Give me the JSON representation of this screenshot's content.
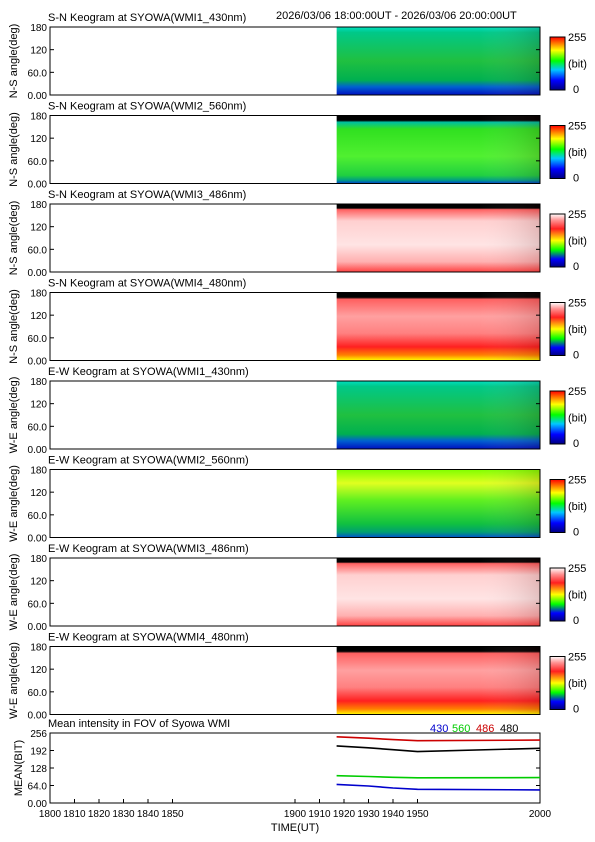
{
  "header": {
    "time_range": "2026/03/06 18:00:00UT - 2026/03/06 20:00:00UT"
  },
  "colorbar": {
    "max_label": "255",
    "unit_label": "(bit)",
    "min_label": "0"
  },
  "keogram_panels": [
    {
      "title": "S-N Keogram at SYOWA(WMI1_430nm)",
      "ylabel": "N-S angle(deg)",
      "palette": "bgr",
      "scheme": "green_mid"
    },
    {
      "title": "S-N Keogram at SYOWA(WMI2_560nm)",
      "ylabel": "N-S angle(deg)",
      "palette": "bgr",
      "scheme": "green_bright"
    },
    {
      "title": "S-N Keogram at SYOWA(WMI3_486nm)",
      "ylabel": "N-S angle(deg)",
      "palette": "wr",
      "scheme": "white_red_top"
    },
    {
      "title": "S-N Keogram at SYOWA(WMI4_480nm)",
      "ylabel": "N-S angle(deg)",
      "palette": "wr",
      "scheme": "red_yellow_bottom"
    },
    {
      "title": "E-W Keogram at SYOWA(WMI1_430nm)",
      "ylabel": "W-E angle(deg)",
      "palette": "bgr",
      "scheme": "green_mid"
    },
    {
      "title": "E-W Keogram at SYOWA(WMI2_560nm)",
      "ylabel": "W-E angle(deg)",
      "palette": "bgr",
      "scheme": "green_yellow"
    },
    {
      "title": "E-W Keogram at SYOWA(WMI3_486nm)",
      "ylabel": "W-E angle(deg)",
      "palette": "wr",
      "scheme": "white_red_top"
    },
    {
      "title": "E-W Keogram at SYOWA(WMI4_480nm)",
      "ylabel": "W-E angle(deg)",
      "palette": "wr",
      "scheme": "red_yellow_bottom"
    }
  ],
  "keogram_yaxis": {
    "ticks": [
      0,
      60,
      120,
      180
    ],
    "tick_labels": [
      "0.00",
      "60.0",
      "120",
      "180"
    ],
    "ylim": [
      0,
      180
    ]
  },
  "chart_data": {
    "type": "line",
    "title": "Mean intensity in FOV of Syowa WMI",
    "xlabel": "TIME(UT)",
    "ylabel": "MEAN(BIT)",
    "xlim": [
      1800,
      2000
    ],
    "ylim": [
      0,
      256
    ],
    "x_tick_values": [
      1800,
      1810,
      1820,
      1830,
      1840,
      1850,
      1900,
      1910,
      1920,
      1930,
      1940,
      1950,
      2000
    ],
    "x_ticks": [
      "1800",
      "1810",
      "1820",
      "1830",
      "1840",
      "1850",
      "1900",
      "1910",
      "1920",
      "1930",
      "1940",
      "1950",
      "2000"
    ],
    "y_ticks": [
      "0.00",
      "64.0",
      "128",
      "192",
      "256"
    ],
    "y_tick_values": [
      0,
      64,
      128,
      192,
      256
    ],
    "x": [
      1917,
      1930,
      1940,
      1950,
      2000
    ],
    "series": [
      {
        "name": "430",
        "color": "#0000cc",
        "values": [
          68,
          62,
          55,
          50,
          48
        ]
      },
      {
        "name": "560",
        "color": "#00cc00",
        "values": [
          100,
          97,
          94,
          92,
          93
        ]
      },
      {
        "name": "486",
        "color": "#cc0000",
        "values": [
          242,
          237,
          232,
          228,
          230
        ]
      },
      {
        "name": "480",
        "color": "#000000",
        "values": [
          209,
          202,
          195,
          188,
          200
        ]
      }
    ],
    "data_start_x": 1917
  }
}
